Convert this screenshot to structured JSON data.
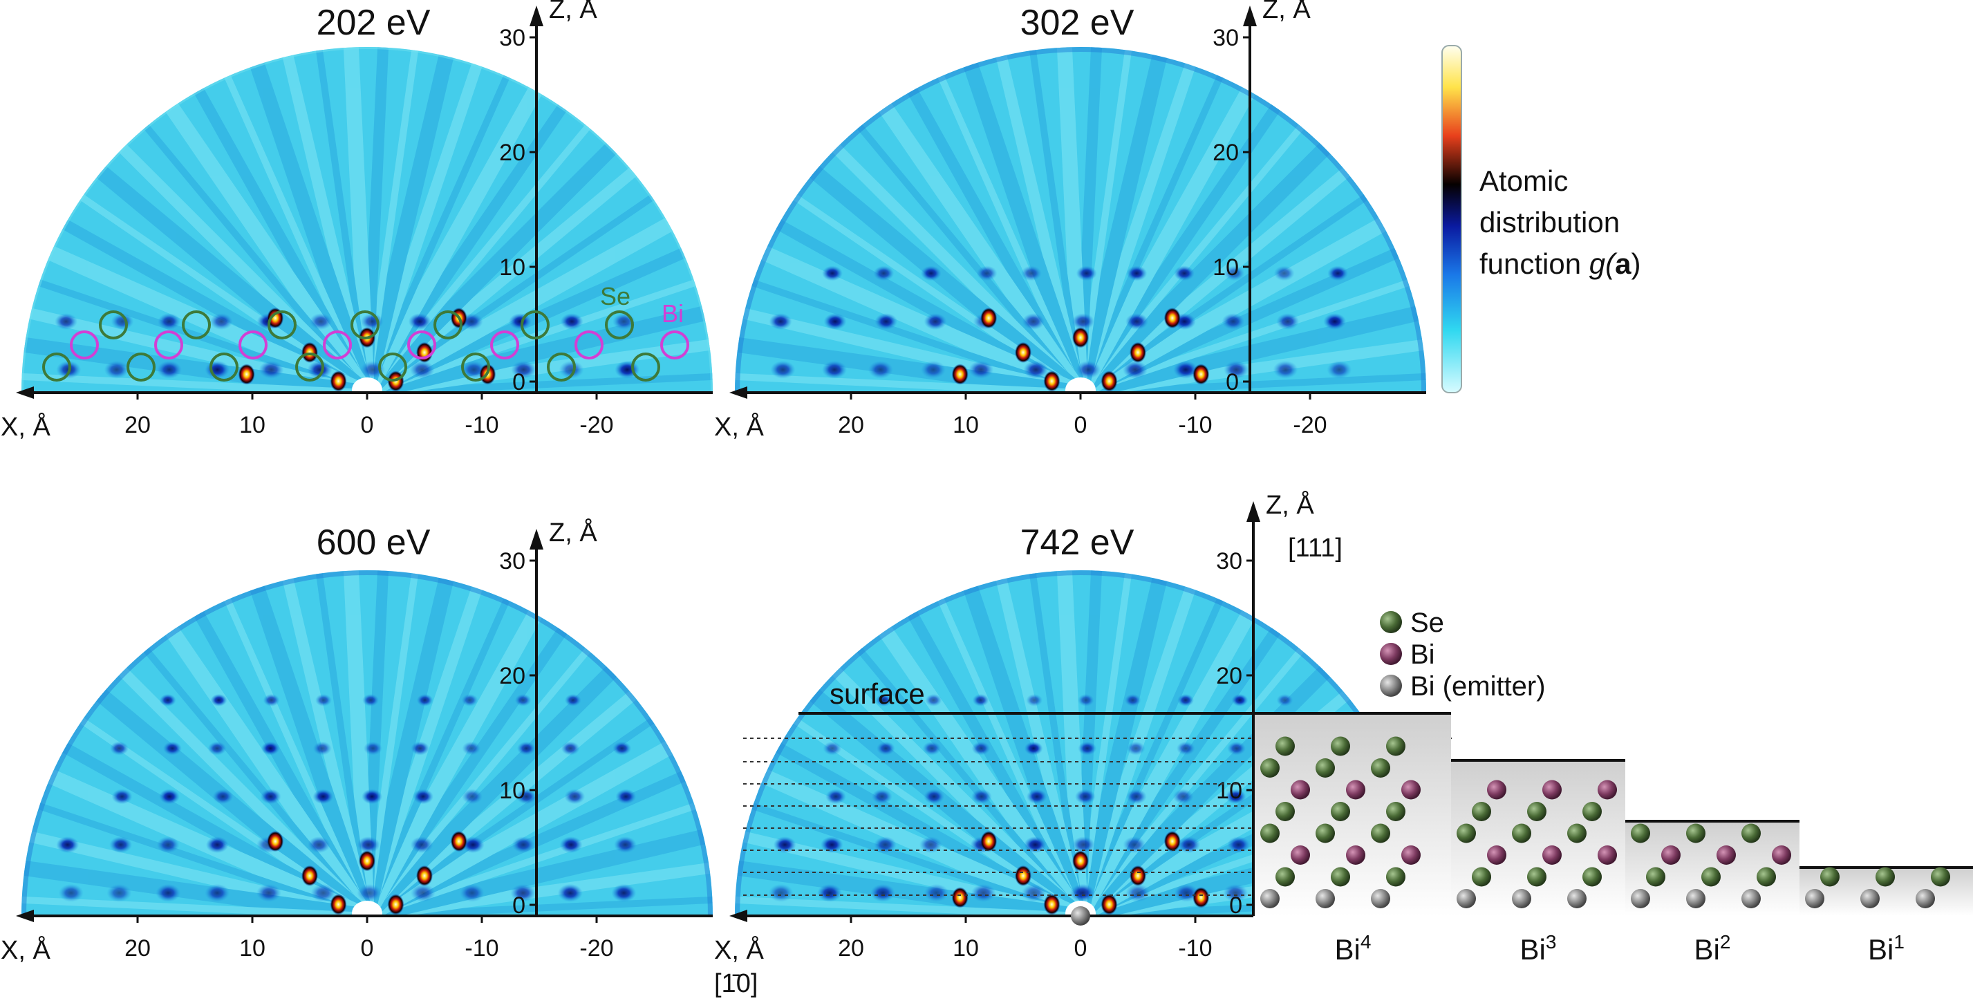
{
  "panels": [
    {
      "title": "202 eV",
      "x_axis_label": "X, Å",
      "z_axis_label": "Z, Å",
      "x_ticks": [
        "20",
        "10",
        "0",
        "-10",
        "-20"
      ],
      "z_ticks": [
        "0",
        "10",
        "20",
        "30"
      ]
    },
    {
      "title": "302 eV",
      "x_axis_label": "X, Å",
      "z_axis_label": "Z, Å",
      "x_ticks": [
        "20",
        "10",
        "0",
        "-10",
        "-20"
      ],
      "z_ticks": [
        "0",
        "10",
        "20",
        "30"
      ]
    },
    {
      "title": "600 eV",
      "x_axis_label": "X, Å",
      "z_axis_label": "Z, Å",
      "x_ticks": [
        "20",
        "10",
        "0",
        "-10",
        "-20"
      ],
      "z_ticks": [
        "0",
        "10",
        "20",
        "30"
      ]
    },
    {
      "title": "742 eV",
      "x_axis_label": "X, Å",
      "x_direction": "[1̄0]",
      "z_axis_label": "Z, Å",
      "z_direction": "[111]",
      "x_ticks": [
        "20",
        "10",
        "0",
        "-10"
      ],
      "z_ticks": [
        "0",
        "10",
        "20",
        "30"
      ]
    }
  ],
  "overlay_labels": {
    "se": "Se",
    "bi": "Bi",
    "surface": "surface"
  },
  "colorbar": {
    "lines": [
      "Atomic",
      "distribution",
      "function"
    ],
    "func": "g(",
    "bold": "a",
    "close": ")",
    "colors": [
      "#ffffe0",
      "#ffd700",
      "#e0401a",
      "#000000",
      "#00008b",
      "#1e90ff",
      "#00e5ff",
      "#e0ffff"
    ]
  },
  "legend": {
    "items": [
      {
        "label": "Se",
        "color": "#4e6b3a"
      },
      {
        "label": "Bi",
        "color": "#7a3a5e"
      },
      {
        "label": "Bi (emitter)",
        "color": "#7c7c7c"
      }
    ]
  },
  "slabs": [
    {
      "base": "Bi",
      "sup": "4"
    },
    {
      "base": "Bi",
      "sup": "3"
    },
    {
      "base": "Bi",
      "sup": "2"
    },
    {
      "base": "Bi",
      "sup": "1"
    }
  ],
  "colors": {
    "map_bg": "#44cdeb",
    "se_ring": "#3d7a3a",
    "bi_ring": "#d23fd4"
  }
}
